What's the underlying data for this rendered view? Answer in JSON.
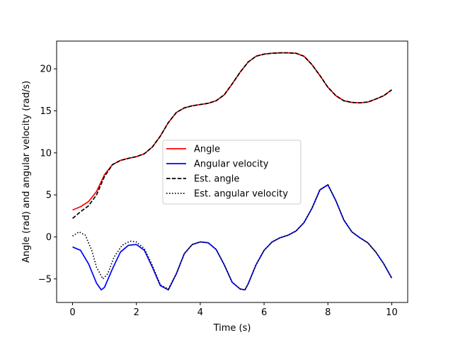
{
  "chart_data": {
    "type": "line",
    "xlabel": "Time (s)",
    "ylabel": "Angle (rad) and angular velocity (rad/s)",
    "xlim": [
      -0.5,
      10.5
    ],
    "ylim": [
      -7.8,
      23.3
    ],
    "xticks": [
      0,
      2,
      4,
      6,
      8,
      10
    ],
    "yticks": [
      -5,
      0,
      5,
      10,
      15,
      20
    ],
    "grid": false,
    "legend_position": "center",
    "series": [
      {
        "name": "Angle",
        "color": "#ff0000",
        "style": "solid",
        "x": [
          0,
          0.25,
          0.5,
          0.75,
          1,
          1.25,
          1.5,
          1.75,
          2,
          2.25,
          2.5,
          2.75,
          3,
          3.25,
          3.5,
          3.75,
          4,
          4.25,
          4.5,
          4.75,
          5,
          5.25,
          5.5,
          5.75,
          6,
          6.25,
          6.5,
          6.75,
          7,
          7.25,
          7.5,
          7.75,
          8,
          8.25,
          8.5,
          8.75,
          9,
          9.25,
          9.5,
          9.75,
          10
        ],
        "y": [
          3.2,
          3.6,
          4.2,
          5.4,
          7.4,
          8.6,
          9.1,
          9.35,
          9.55,
          9.9,
          10.7,
          12.0,
          13.6,
          14.8,
          15.35,
          15.6,
          15.75,
          15.9,
          16.2,
          16.9,
          18.2,
          19.6,
          20.8,
          21.5,
          21.75,
          21.85,
          21.9,
          21.9,
          21.85,
          21.5,
          20.5,
          19.2,
          17.8,
          16.8,
          16.2,
          16.0,
          15.95,
          16.05,
          16.4,
          16.8,
          17.5
        ]
      },
      {
        "name": "Angular velocity",
        "color": "#0000ff",
        "style": "solid",
        "x": [
          0,
          0.25,
          0.5,
          0.75,
          0.9,
          1,
          1.25,
          1.5,
          1.75,
          2,
          2.25,
          2.5,
          2.75,
          3,
          3.25,
          3.5,
          3.75,
          4,
          4.25,
          4.5,
          4.75,
          5,
          5.25,
          5.4,
          5.5,
          5.75,
          6,
          6.25,
          6.5,
          6.75,
          7,
          7.25,
          7.5,
          7.75,
          8,
          8.25,
          8.5,
          8.75,
          9,
          9.25,
          9.5,
          9.75,
          10
        ],
        "y": [
          -1.2,
          -1.6,
          -3.2,
          -5.5,
          -6.3,
          -6.0,
          -3.8,
          -1.8,
          -1.0,
          -0.9,
          -1.6,
          -3.6,
          -5.8,
          -6.3,
          -4.4,
          -2.0,
          -0.9,
          -0.6,
          -0.7,
          -1.5,
          -3.3,
          -5.4,
          -6.2,
          -6.3,
          -5.6,
          -3.3,
          -1.6,
          -0.6,
          -0.1,
          0.2,
          0.7,
          1.7,
          3.4,
          5.6,
          6.2,
          4.3,
          2.0,
          0.6,
          -0.1,
          -0.7,
          -1.8,
          -3.2,
          -4.9
        ]
      },
      {
        "name": "Est. angle",
        "color": "#000000",
        "style": "dashed",
        "x": [
          0,
          0.25,
          0.5,
          0.75,
          1,
          1.25,
          1.5,
          1.75,
          2,
          2.25,
          2.5,
          2.75,
          3,
          3.25,
          3.5,
          3.75,
          4,
          4.25,
          4.5,
          4.75,
          5,
          5.25,
          5.5,
          5.75,
          6,
          6.25,
          6.5,
          6.75,
          7,
          7.25,
          7.5,
          7.75,
          8,
          8.25,
          8.5,
          8.75,
          9,
          9.25,
          9.5,
          9.75,
          10
        ],
        "y": [
          2.2,
          3.0,
          3.7,
          5.0,
          7.2,
          8.6,
          9.1,
          9.35,
          9.55,
          9.9,
          10.7,
          12.0,
          13.6,
          14.8,
          15.35,
          15.6,
          15.75,
          15.9,
          16.2,
          16.9,
          18.2,
          19.6,
          20.8,
          21.5,
          21.75,
          21.85,
          21.9,
          21.9,
          21.85,
          21.5,
          20.5,
          19.2,
          17.8,
          16.8,
          16.2,
          16.0,
          15.95,
          16.05,
          16.4,
          16.8,
          17.5
        ]
      },
      {
        "name": "Est. angular velocity",
        "color": "#000000",
        "style": "dotted",
        "x": [
          0,
          0.2,
          0.4,
          0.6,
          0.75,
          0.95,
          1.1,
          1.3,
          1.55,
          1.8,
          2.0,
          2.25,
          2.5,
          2.75,
          3,
          3.25,
          3.5,
          3.75,
          4,
          4.25,
          4.5,
          4.75,
          5,
          5.25,
          5.4,
          5.5,
          5.75,
          6,
          6.25,
          6.5,
          6.75,
          7,
          7.25,
          7.5,
          7.75,
          8,
          8.25,
          8.5,
          8.75,
          9,
          9.25,
          9.5,
          9.75,
          10
        ],
        "y": [
          0.1,
          0.6,
          0.2,
          -1.6,
          -3.6,
          -5.0,
          -4.4,
          -2.4,
          -1.0,
          -0.5,
          -0.6,
          -1.4,
          -3.4,
          -5.7,
          -6.2,
          -4.4,
          -2.0,
          -0.9,
          -0.6,
          -0.7,
          -1.5,
          -3.3,
          -5.4,
          -6.2,
          -6.3,
          -5.6,
          -3.3,
          -1.6,
          -0.6,
          -0.1,
          0.2,
          0.7,
          1.7,
          3.4,
          5.6,
          6.2,
          4.3,
          2.0,
          0.6,
          -0.1,
          -0.7,
          -1.8,
          -3.2,
          -4.9
        ]
      }
    ]
  }
}
